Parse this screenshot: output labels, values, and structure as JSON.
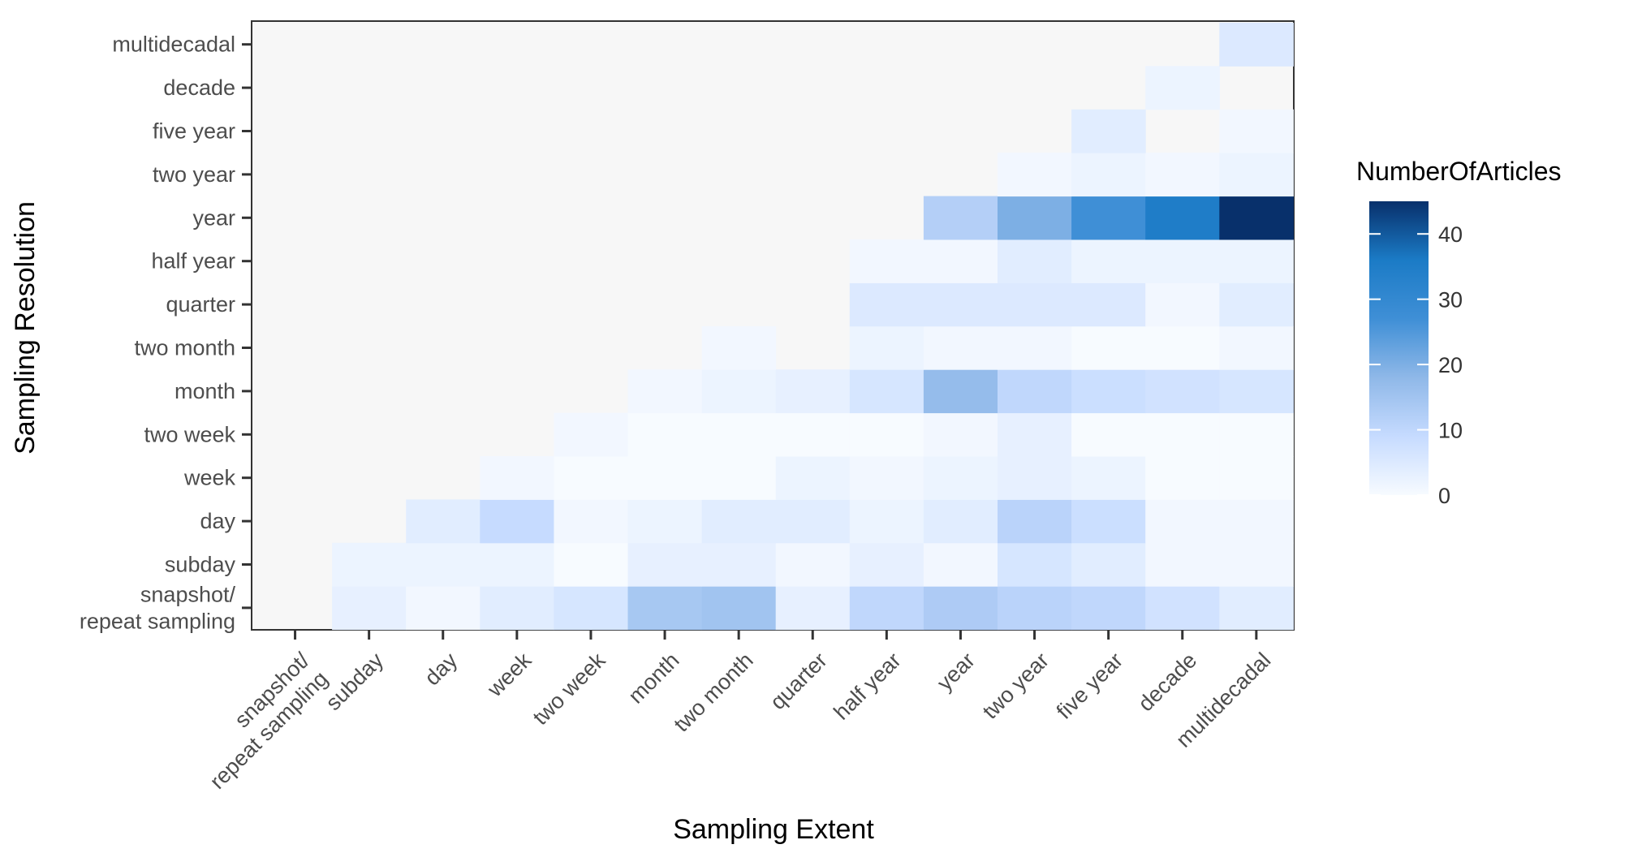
{
  "chart_data": {
    "type": "heatmap",
    "xlabel": "Sampling Extent",
    "ylabel": "Sampling Resolution",
    "x_categories": [
      "snapshot/\nrepeat sampling",
      "subday",
      "day",
      "week",
      "two week",
      "month",
      "two month",
      "quarter",
      "half year",
      "year",
      "two year",
      "five year",
      "decade",
      "multidecadal"
    ],
    "y_categories": [
      "snapshot/\nrepeat sampling",
      "subday",
      "day",
      "week",
      "two week",
      "month",
      "two month",
      "quarter",
      "half year",
      "year",
      "two year",
      "five year",
      "decade",
      "multidecadal"
    ],
    "values": [
      [
        null,
        3,
        1,
        4,
        6,
        14,
        15,
        3,
        10,
        13,
        11,
        10,
        7,
        4
      ],
      [
        null,
        2,
        2,
        2,
        0,
        3,
        3,
        1,
        3,
        1,
        6,
        4,
        1,
        1
      ],
      [
        null,
        null,
        4,
        9,
        1,
        2,
        4,
        4,
        2,
        4,
        11,
        8,
        1,
        1
      ],
      [
        null,
        null,
        null,
        1,
        0,
        0,
        0,
        2,
        1,
        2,
        3,
        2,
        0,
        0
      ],
      [
        null,
        null,
        null,
        null,
        1,
        0,
        0,
        0,
        0,
        1,
        3,
        0,
        0,
        0
      ],
      [
        null,
        null,
        null,
        null,
        null,
        1,
        2,
        3,
        6,
        17,
        10,
        8,
        7,
        6
      ],
      [
        null,
        null,
        null,
        null,
        null,
        null,
        1,
        null,
        2,
        1,
        1,
        0,
        0,
        1
      ],
      [
        null,
        null,
        null,
        null,
        null,
        null,
        null,
        null,
        5,
        5,
        5,
        5,
        1,
        4
      ],
      [
        null,
        null,
        null,
        null,
        null,
        null,
        null,
        null,
        1,
        1,
        4,
        2,
        2,
        2
      ],
      [
        null,
        null,
        null,
        null,
        null,
        null,
        null,
        null,
        null,
        12,
        20,
        27,
        35,
        45
      ],
      [
        null,
        null,
        null,
        null,
        null,
        null,
        null,
        null,
        null,
        null,
        1,
        2,
        1,
        2
      ],
      [
        null,
        null,
        null,
        null,
        null,
        null,
        null,
        null,
        null,
        null,
        null,
        4,
        null,
        1
      ],
      [
        null,
        null,
        null,
        null,
        null,
        null,
        null,
        null,
        null,
        null,
        null,
        null,
        2,
        null
      ],
      [
        null,
        null,
        null,
        null,
        null,
        null,
        null,
        null,
        null,
        null,
        null,
        null,
        null,
        5
      ]
    ],
    "colorbar": {
      "title": "NumberOfArticles",
      "min": 0,
      "max": 45,
      "ticks": [
        0,
        10,
        20,
        30,
        40
      ],
      "colors": [
        "#f7fbff",
        "#c6dbff",
        "#8fb8e8",
        "#3f8fd6",
        "#1b7bc6",
        "#08306b"
      ]
    },
    "background_color": "#f7f7f7",
    "grid": false,
    "legend_position": "right"
  }
}
